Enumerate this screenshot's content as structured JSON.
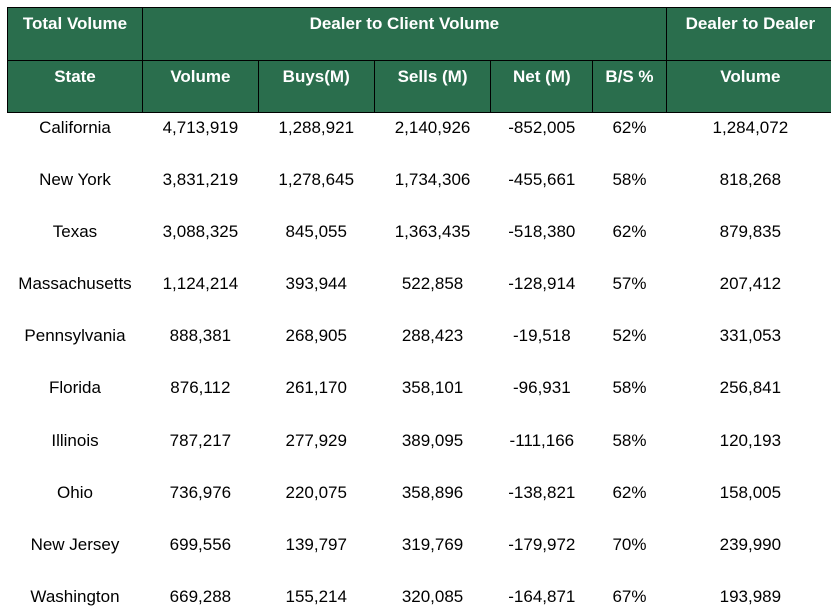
{
  "header": {
    "row1": {
      "total_volume": "Total Volume",
      "dealer_to_client": "Dealer to Client Volume",
      "dealer_to_dealer": "Dealer to Dealer"
    },
    "row2": [
      "State",
      "Volume",
      "Buys(M)",
      "Sells (M)",
      "Net (M)",
      "B/S %",
      "Volume"
    ]
  },
  "colors": {
    "header_bg": "#2a6e4d",
    "header_text": "#ffffff"
  },
  "rows": [
    [
      "California",
      "4,713,919",
      "1,288,921",
      "2,140,926",
      "-852,005",
      "62%",
      "1,284,072"
    ],
    [
      "New York",
      "3,831,219",
      "1,278,645",
      "1,734,306",
      "-455,661",
      "58%",
      "818,268"
    ],
    [
      "Texas",
      "3,088,325",
      "845,055",
      "1,363,435",
      "-518,380",
      "62%",
      "879,835"
    ],
    [
      "Massachusetts",
      "1,124,214",
      "393,944",
      "522,858",
      "-128,914",
      "57%",
      "207,412"
    ],
    [
      "Pennsylvania",
      "888,381",
      "268,905",
      "288,423",
      "-19,518",
      "52%",
      "331,053"
    ],
    [
      "Florida",
      "876,112",
      "261,170",
      "358,101",
      "-96,931",
      "58%",
      "256,841"
    ],
    [
      "Illinois",
      "787,217",
      "277,929",
      "389,095",
      "-111,166",
      "58%",
      "120,193"
    ],
    [
      "Ohio",
      "736,976",
      "220,075",
      "358,896",
      "-138,821",
      "62%",
      "158,005"
    ],
    [
      "New Jersey",
      "699,556",
      "139,797",
      "319,769",
      "-179,972",
      "70%",
      "239,990"
    ],
    [
      "Washington",
      "669,288",
      "155,214",
      "320,085",
      "-164,871",
      "67%",
      "193,989"
    ]
  ]
}
